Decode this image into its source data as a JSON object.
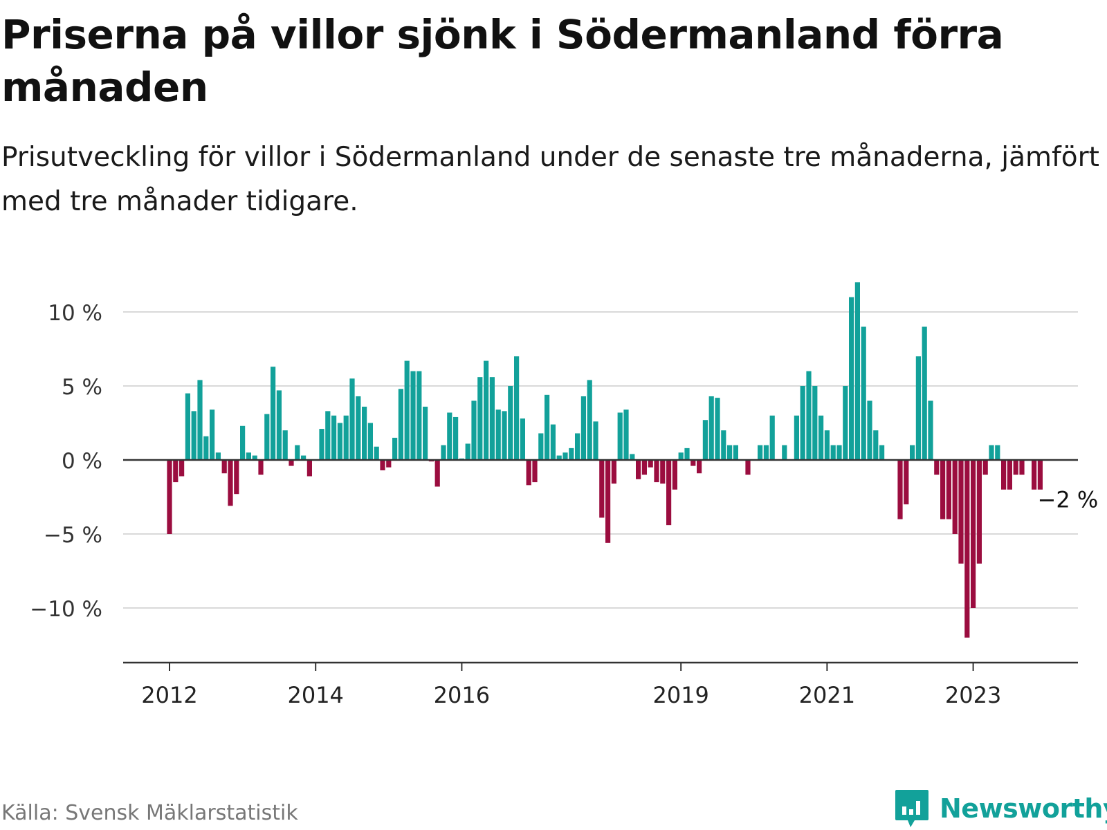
{
  "title": "Priserna på villor sjönk i Södermanland förra månaden",
  "subtitle": "Prisutveckling för villor i Södermanland under de senaste tre månaderna, jämfört med tre månader tidigare.",
  "source": "Källa: Svensk Mäklarstatistik",
  "brand": "Newsworthy",
  "colors": {
    "positive": "#12a19a",
    "negative": "#9b0d3f",
    "grid": "#d9d9d9",
    "axis": "#333333"
  },
  "chart_data": {
    "type": "bar",
    "title": "Priserna på villor sjönk i Södermanland förra månaden",
    "ylim": [
      -13.5,
      12.5
    ],
    "yticks": [
      -10,
      -5,
      0,
      5,
      10
    ],
    "ytick_labels": [
      "−10 %",
      "−5 %",
      "0 %",
      "5 %",
      "10 %"
    ],
    "xtick_labels": [
      {
        "label": "2012",
        "year": 2012
      },
      {
        "label": "2014",
        "year": 2014
      },
      {
        "label": "2016",
        "year": 2016
      },
      {
        "label": "2019",
        "year": 2019
      },
      {
        "label": "2021",
        "year": 2021
      },
      {
        "label": "2023",
        "year": 2023
      }
    ],
    "start": "2012-01",
    "grid": true,
    "unit": "%",
    "last_value_label": "−2 %",
    "values": [
      -5.0,
      -1.5,
      -1.1,
      4.5,
      3.3,
      5.4,
      1.6,
      3.4,
      0.5,
      -0.9,
      -3.1,
      -2.3,
      2.3,
      0.5,
      0.3,
      -1.0,
      3.1,
      6.3,
      4.7,
      2.0,
      -0.4,
      1.0,
      0.3,
      -1.1,
      0.0,
      2.1,
      3.3,
      3.0,
      2.5,
      3.0,
      5.5,
      4.3,
      3.6,
      2.5,
      0.9,
      -0.7,
      -0.5,
      1.5,
      4.8,
      6.7,
      6.0,
      6.0,
      3.6,
      -0.1,
      -1.8,
      1.0,
      3.2,
      2.9,
      0.1,
      1.1,
      4.0,
      5.6,
      6.7,
      5.6,
      3.4,
      3.3,
      5.0,
      7.0,
      2.8,
      -1.7,
      -1.5,
      1.8,
      4.4,
      2.4,
      0.3,
      0.5,
      0.8,
      1.8,
      4.3,
      5.4,
      2.6,
      -3.9,
      -5.6,
      -1.6,
      3.2,
      3.4,
      0.4,
      -1.3,
      -1.0,
      -0.5,
      -1.5,
      -1.6,
      -4.4,
      -2.0,
      0.5,
      0.8,
      -0.4,
      -0.9,
      2.7,
      4.3,
      4.2,
      2.0,
      1.0,
      1.0,
      0.0,
      -1.0,
      0.0,
      1.0,
      1.0,
      3.0,
      0.0,
      1.0,
      0.0,
      3.0,
      5.0,
      6.0,
      5.0,
      3.0,
      2.0,
      1.0,
      1.0,
      5.0,
      11.0,
      12.0,
      9.0,
      4.0,
      2.0,
      1.0,
      0.0,
      0.0,
      -4.0,
      -3.0,
      1.0,
      7.0,
      9.0,
      4.0,
      -1.0,
      -4.0,
      -4.0,
      -5.0,
      -7.0,
      -12.0,
      -10.0,
      -7.0,
      -1.0,
      1.0,
      1.0,
      -2.0,
      -2.0,
      -1.0,
      -1.0,
      0.0,
      -2.0,
      -2.0
    ]
  }
}
